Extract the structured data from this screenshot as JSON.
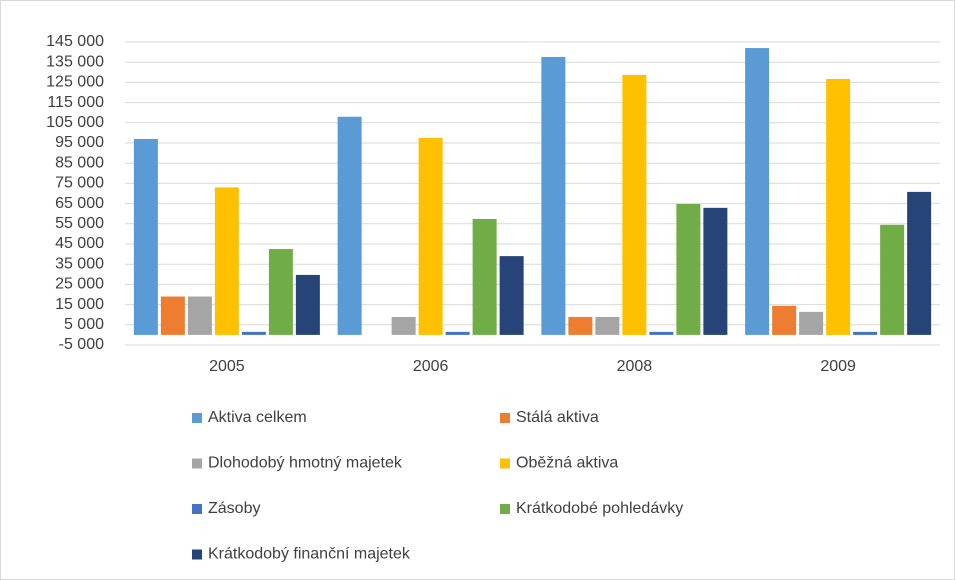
{
  "chart_data": {
    "type": "bar",
    "categories": [
      "2005",
      "2006",
      "2008",
      "2009"
    ],
    "series": [
      {
        "name": "Aktiva celkem",
        "color": "#5b9bd5",
        "values": [
          97000,
          108000,
          137600,
          142000
        ]
      },
      {
        "name": "Stálá aktiva",
        "color": "#ed7d31",
        "values": [
          19000,
          0,
          8900,
          14400
        ]
      },
      {
        "name": "Dlohodobý hmotný majetek",
        "color": "#a5a5a5",
        "values": [
          19000,
          8900,
          8900,
          11400
        ]
      },
      {
        "name": "Oběžná aktiva",
        "color": "#ffc000",
        "values": [
          73000,
          97500,
          128700,
          126700
        ]
      },
      {
        "name": "Zásoby",
        "color": "#4472c4",
        "values": [
          1500,
          1500,
          1500,
          1500
        ]
      },
      {
        "name": "Krátkodobé pohledávky",
        "color": "#70ad47",
        "values": [
          42500,
          57400,
          64800,
          54500
        ]
      },
      {
        "name": "Krátkodobý finanční majetek",
        "color": "#264478",
        "values": [
          29700,
          39000,
          62900,
          70800
        ]
      }
    ],
    "ylim": [
      -5000,
      145000
    ],
    "yticks": [
      {
        "value": -5000,
        "label": "-5 000"
      },
      {
        "value": 5000,
        "label": "5 000"
      },
      {
        "value": 15000,
        "label": "15 000"
      },
      {
        "value": 25000,
        "label": "25 000"
      },
      {
        "value": 35000,
        "label": "35 000"
      },
      {
        "value": 45000,
        "label": "45 000"
      },
      {
        "value": 55000,
        "label": "55 000"
      },
      {
        "value": 65000,
        "label": "65 000"
      },
      {
        "value": 75000,
        "label": "75 000"
      },
      {
        "value": 85000,
        "label": "85 000"
      },
      {
        "value": 95000,
        "label": "95 000"
      },
      {
        "value": 105000,
        "label": "105 000"
      },
      {
        "value": 115000,
        "label": "115 000"
      },
      {
        "value": 125000,
        "label": "125 000"
      },
      {
        "value": 135000,
        "label": "135 000"
      },
      {
        "value": 145000,
        "label": "145 000"
      }
    ],
    "grid": true
  }
}
